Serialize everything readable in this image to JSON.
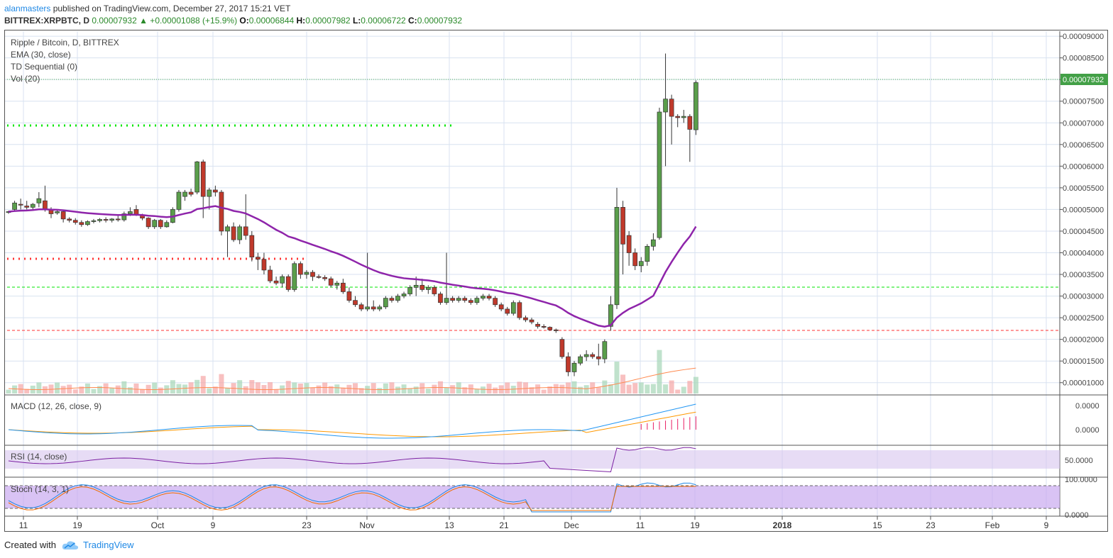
{
  "header": {
    "author": "alanmasters",
    "published": " published on TradingView.com, December 27, 2017 15:21 VET",
    "symbol": "BITTREX:XRPBTC, D",
    "last": "0.00007932",
    "change": "▲ +0.00001088 (+15.9%)",
    "o_label": "O:",
    "o": "0.00006844",
    "h_label": "H:",
    "h": "0.00007982",
    "l_label": "L:",
    "l": "0.00006722",
    "c_label": "C:",
    "c": "0.00007932"
  },
  "legend": {
    "title": "Ripple / Bitcoin, D, BITTREX",
    "ema": "EMA (30, close)",
    "td": "TD Sequential (0)",
    "vol": "Vol (20)"
  },
  "panes": {
    "macd": "MACD (12, 26, close, 9)",
    "rsi": "RSI (14, close)",
    "stoch": "Stoch (14, 3, 1)"
  },
  "price_axis": [
    "0.00009000",
    "0.00008500",
    "0.00008000",
    "0.00007500",
    "0.00007000",
    "0.00006500",
    "0.00006000",
    "0.00005500",
    "0.00005000",
    "0.00004500",
    "0.00004000",
    "0.00003500",
    "0.00003000",
    "0.00002500",
    "0.00002000",
    "0.00001500",
    "0.00001000"
  ],
  "last_price_tag": "0.00007932",
  "macd_axis": [
    "0.0000",
    "0.0000"
  ],
  "rsi_axis": [
    "50.0000"
  ],
  "stoch_axis": [
    "100.0000",
    "0.0000"
  ],
  "time_axis": [
    "11",
    "19",
    "Oct",
    "9",
    "23",
    "Nov",
    "13",
    "21",
    "Dec",
    "11",
    "19",
    "2018",
    "15",
    "23",
    "Feb",
    "9"
  ],
  "colors": {
    "bull": "#5a9e4b",
    "bear": "#c0392b",
    "ema": "#8e24aa",
    "macd": "#2196f3",
    "signal": "#ff9800",
    "green_level": "#00e600",
    "red_level": "#ff3333"
  },
  "footer": {
    "created": "Created with",
    "brand": "TradingView"
  },
  "chart_data": {
    "type": "candlestick",
    "y_range": [
      7.5e-06,
      9.1e-05
    ],
    "candles": [
      [
        4.93e-05,
        4.97e-05,
        4.9e-05,
        4.95e-05
      ],
      [
        5e-05,
        5.2e-05,
        4.95e-05,
        5.15e-05
      ],
      [
        5.12e-05,
        5.25e-05,
        5e-05,
        5.1e-05
      ],
      [
        5.08e-05,
        5.2e-05,
        5e-05,
        5.05e-05
      ],
      [
        5.05e-05,
        5.15e-05,
        5e-05,
        5.12e-05
      ],
      [
        5.15e-05,
        5.4e-05,
        5.05e-05,
        5.25e-05
      ],
      [
        5.2e-05,
        5.55e-05,
        4.95e-05,
        5e-05
      ],
      [
        5e-05,
        5.05e-05,
        4.8e-05,
        4.9e-05
      ],
      [
        4.92e-05,
        5e-05,
        4.88e-05,
        4.95e-05
      ],
      [
        4.95e-05,
        4.98e-05,
        4.7e-05,
        4.78e-05
      ],
      [
        4.78e-05,
        4.82e-05,
        4.7e-05,
        4.75e-05
      ],
      [
        4.75e-05,
        4.8e-05,
        4.65e-05,
        4.7e-05
      ],
      [
        4.7e-05,
        4.75e-05,
        4.6e-05,
        4.65e-05
      ],
      [
        4.65e-05,
        4.75e-05,
        4.62e-05,
        4.72e-05
      ],
      [
        4.72e-05,
        4.78e-05,
        4.68e-05,
        4.74e-05
      ],
      [
        4.74e-05,
        4.8e-05,
        4.7e-05,
        4.77e-05
      ],
      [
        4.77e-05,
        4.82e-05,
        4.7e-05,
        4.75e-05
      ],
      [
        4.75e-05,
        4.8e-05,
        4.7e-05,
        4.78e-05
      ],
      [
        4.78e-05,
        4.85e-05,
        4.72e-05,
        4.76e-05
      ],
      [
        4.76e-05,
        4.95e-05,
        4.72e-05,
        4.9e-05
      ],
      [
        4.9e-05,
        5.05e-05,
        4.85e-05,
        4.95e-05
      ],
      [
        5e-05,
        5.1e-05,
        4.85e-05,
        4.87e-05
      ],
      [
        4.87e-05,
        4.9e-05,
        4.75e-05,
        4.8e-05
      ],
      [
        4.8e-05,
        4.82e-05,
        4.55e-05,
        4.6e-05
      ],
      [
        4.6e-05,
        4.78e-05,
        4.55e-05,
        4.75e-05
      ],
      [
        4.75e-05,
        4.78e-05,
        4.55e-05,
        4.6e-05
      ],
      [
        4.6e-05,
        4.75e-05,
        4.58e-05,
        4.7e-05
      ],
      [
        4.7e-05,
        5.05e-05,
        4.68e-05,
        5e-05
      ],
      [
        5e-05,
        5.45e-05,
        4.95e-05,
        5.4e-05
      ],
      [
        5.3e-05,
        5.45e-05,
        5.2e-05,
        5.4e-05
      ],
      [
        5.4e-05,
        5.48e-05,
        5.3e-05,
        5.35e-05
      ],
      [
        5.4e-05,
        6.12e-05,
        5.35e-05,
        6.1e-05
      ],
      [
        6.1e-05,
        6.15e-05,
        4.8e-05,
        5.3e-05
      ],
      [
        5.3e-05,
        5.5e-05,
        5e-05,
        5.45e-05
      ],
      [
        5.45e-05,
        5.55e-05,
        5.3e-05,
        5.4e-05
      ],
      [
        5.4e-05,
        5.45e-05,
        4.4e-05,
        4.5e-05
      ],
      [
        4.5e-05,
        4.65e-05,
        3.9e-05,
        4.6e-05
      ],
      [
        4.6e-05,
        4.7e-05,
        4.25e-05,
        4.3e-05
      ],
      [
        4.3e-05,
        4.65e-05,
        4.2e-05,
        4.6e-05
      ],
      [
        4.6e-05,
        5.35e-05,
        4.3e-05,
        4.4e-05
      ],
      [
        4.4e-05,
        4.5e-05,
        3.8e-05,
        3.9e-05
      ],
      [
        3.9e-05,
        4e-05,
        3.6e-05,
        3.85e-05
      ],
      [
        3.85e-05,
        4e-05,
        3.5e-05,
        3.6e-05
      ],
      [
        3.6e-05,
        3.7e-05,
        3.3e-05,
        3.35e-05
      ],
      [
        3.35e-05,
        3.45e-05,
        3.25e-05,
        3.3e-05
      ],
      [
        3.3e-05,
        3.5e-05,
        3.2e-05,
        3.45e-05
      ],
      [
        3.45e-05,
        3.5e-05,
        3.1e-05,
        3.15e-05
      ],
      [
        3.15e-05,
        3.8e-05,
        3.1e-05,
        3.75e-05
      ],
      [
        3.75e-05,
        3.8e-05,
        3.4e-05,
        3.5e-05
      ],
      [
        3.5e-05,
        3.6e-05,
        3.4e-05,
        3.55e-05
      ],
      [
        3.55e-05,
        3.6e-05,
        3.35e-05,
        3.45e-05
      ],
      [
        3.45e-05,
        3.5e-05,
        3.4e-05,
        3.43e-05
      ],
      [
        3.43e-05,
        3.48e-05,
        3.35e-05,
        3.4e-05
      ],
      [
        3.4e-05,
        3.45e-05,
        3.2e-05,
        3.25e-05
      ],
      [
        3.25e-05,
        3.35e-05,
        3.15e-05,
        3.3e-05
      ],
      [
        3.3e-05,
        3.4e-05,
        3.05e-05,
        3.1e-05
      ],
      [
        3.1e-05,
        3.2e-05,
        2.85e-05,
        2.9e-05
      ],
      [
        2.9e-05,
        3e-05,
        2.75e-05,
        2.8e-05
      ],
      [
        2.8e-05,
        2.85e-05,
        2.65e-05,
        2.7e-05
      ],
      [
        2.7e-05,
        4e-05,
        2.65e-05,
        2.75e-05
      ],
      [
        2.75e-05,
        2.9e-05,
        2.65e-05,
        2.7e-05
      ],
      [
        2.7e-05,
        2.8e-05,
        2.65e-05,
        2.75e-05
      ],
      [
        2.75e-05,
        3e-05,
        2.7e-05,
        2.95e-05
      ],
      [
        2.95e-05,
        3e-05,
        2.85e-05,
        2.9e-05
      ],
      [
        2.9e-05,
        3.05e-05,
        2.85e-05,
        3e-05
      ],
      [
        3e-05,
        3.1e-05,
        2.95e-05,
        3.05e-05
      ],
      [
        3.05e-05,
        3.25e-05,
        3e-05,
        3.2e-05
      ],
      [
        3.2e-05,
        3.45e-05,
        3e-05,
        3.25e-05
      ],
      [
        3.25e-05,
        3.4e-05,
        3.1e-05,
        3.15e-05
      ],
      [
        3.15e-05,
        3.25e-05,
        3.05e-05,
        3.2e-05
      ],
      [
        3.2e-05,
        3.25e-05,
        3e-05,
        3.05e-05
      ],
      [
        3.05e-05,
        3.1e-05,
        2.8e-05,
        2.85e-05
      ],
      [
        2.85e-05,
        4e-05,
        2.8e-05,
        2.95e-05
      ],
      [
        2.95e-05,
        3e-05,
        2.85e-05,
        2.9e-05
      ],
      [
        2.9e-05,
        3e-05,
        2.85e-05,
        2.95e-05
      ],
      [
        2.95e-05,
        3e-05,
        2.85e-05,
        2.9e-05
      ],
      [
        2.9e-05,
        2.95e-05,
        2.8e-05,
        2.85e-05
      ],
      [
        2.85e-05,
        3e-05,
        2.8e-05,
        2.95e-05
      ],
      [
        2.95e-05,
        3.05e-05,
        2.9e-05,
        3e-05
      ],
      [
        3e-05,
        3.05e-05,
        2.9e-05,
        2.95e-05
      ],
      [
        2.95e-05,
        3e-05,
        2.75e-05,
        2.8e-05
      ],
      [
        2.8e-05,
        2.85e-05,
        2.65e-05,
        2.7e-05
      ],
      [
        2.7e-05,
        2.75e-05,
        2.55e-05,
        2.6e-05
      ],
      [
        2.6e-05,
        2.9e-05,
        2.55e-05,
        2.85e-05
      ],
      [
        2.85e-05,
        2.9e-05,
        2.45e-05,
        2.5e-05
      ],
      [
        2.5e-05,
        2.55e-05,
        2.4e-05,
        2.45e-05
      ],
      [
        2.45e-05,
        2.5e-05,
        2.35e-05,
        2.4e-05
      ],
      [
        2.35e-05,
        2.4e-05,
        2.25e-05,
        2.3e-05
      ],
      [
        2.3e-05,
        2.35e-05,
        2.25e-05,
        2.28e-05
      ],
      [
        2.28e-05,
        2.3e-05,
        2.2e-05,
        2.22e-05
      ],
      [
        2.22e-05,
        2.25e-05,
        2.15e-05,
        2.2e-05
      ],
      [
        2e-05,
        2.05e-05,
        1.55e-05,
        1.6e-05
      ],
      [
        1.6e-05,
        1.7e-05,
        1.15e-05,
        1.25e-05
      ],
      [
        1.25e-05,
        1.5e-05,
        1.15e-05,
        1.45e-05
      ],
      [
        1.45e-05,
        1.65e-05,
        1.4e-05,
        1.6e-05
      ],
      [
        1.6e-05,
        1.75e-05,
        1.5e-05,
        1.65e-05
      ],
      [
        1.65e-05,
        1.7e-05,
        1.55e-05,
        1.6e-05
      ],
      [
        1.6e-05,
        1.9e-05,
        1.4e-05,
        1.55e-05
      ],
      [
        1.55e-05,
        2e-05,
        1.45e-05,
        1.95e-05
      ],
      [
        2.3e-05,
        3e-05,
        2.2e-05,
        2.8e-05
      ],
      [
        2.8e-05,
        5.5e-05,
        2.7e-05,
        5.05e-05
      ],
      [
        5.05e-05,
        5.2e-05,
        3.5e-05,
        4.2e-05
      ],
      [
        4.4e-05,
        4.5e-05,
        3.7e-05,
        4e-05
      ],
      [
        4e-05,
        4.1e-05,
        3.6e-05,
        3.7e-05
      ],
      [
        3.7e-05,
        3.9e-05,
        3.55e-05,
        3.8e-05
      ],
      [
        3.8e-05,
        4.2e-05,
        3.7e-05,
        4.15e-05
      ],
      [
        4.15e-05,
        4.45e-05,
        4.05e-05,
        4.3e-05
      ],
      [
        4.35e-05,
        7.35e-05,
        4.3e-05,
        7.25e-05
      ],
      [
        7.25e-05,
        8.6e-05,
        6e-05,
        7.55e-05
      ],
      [
        7.55e-05,
        7.65e-05,
        6.5e-05,
        7.15e-05
      ],
      [
        7.15e-05,
        7.2e-05,
        6.9e-05,
        7.12e-05
      ],
      [
        7.12e-05,
        7.3e-05,
        7e-05,
        7.15e-05
      ],
      [
        7.15e-05,
        7.2e-05,
        6.1e-05,
        6.85e-05
      ],
      [
        6.84e-05,
        7.98e-05,
        6.72e-05,
        7.93e-05
      ]
    ]
  }
}
